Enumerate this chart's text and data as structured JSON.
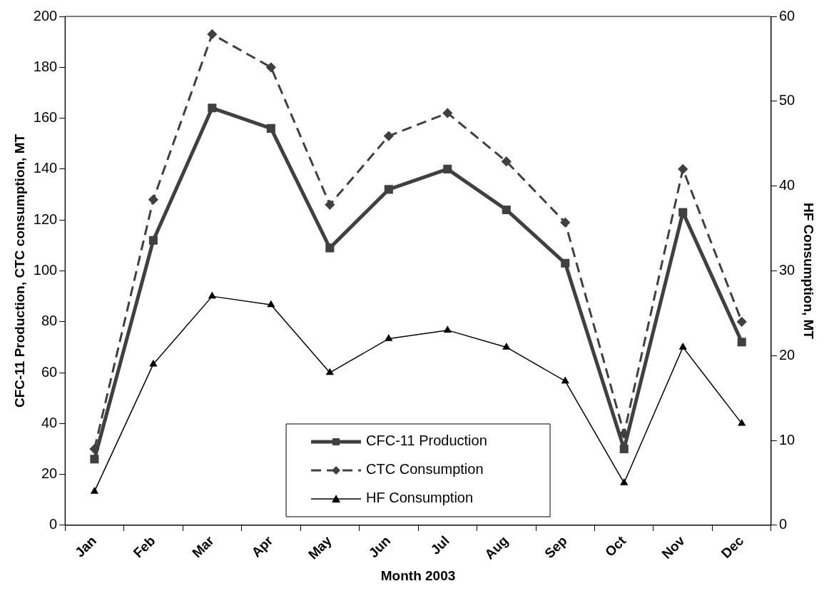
{
  "chart_data": {
    "type": "line",
    "xlabel": "Month 2003",
    "ylabel": "CFC-11 Production, CTC consumption, MT",
    "y2label": "HF Consumption, MT",
    "categories": [
      "Jan",
      "Feb",
      "Mar",
      "Apr",
      "May",
      "Jun",
      "Jul",
      "Aug",
      "Sep",
      "Oct",
      "Nov",
      "Dec"
    ],
    "series": [
      {
        "name": "CFC-11 Production",
        "color": "#404040",
        "marker": "square",
        "line_style": "solid",
        "values": [
          26,
          112,
          164,
          156,
          109,
          132,
          140,
          124,
          103,
          30,
          123,
          72
        ]
      },
      {
        "name": "CTC Consumption",
        "color": "#404040",
        "marker": "diamond",
        "line_style": "dashed",
        "values": [
          30,
          128,
          193,
          180,
          126,
          153,
          162,
          143,
          119,
          36,
          140,
          80
        ]
      },
      {
        "name": "HF Consumption",
        "color": "#000000",
        "marker": "triangle",
        "line_style": "solid",
        "axis": "y2",
        "values": [
          4,
          19,
          27,
          26,
          18,
          22,
          23,
          21,
          17,
          5,
          21,
          12
        ]
      }
    ],
    "ylim": [
      0,
      200
    ],
    "yticks": [
      0,
      20,
      40,
      60,
      80,
      100,
      120,
      140,
      160,
      180,
      200
    ],
    "y2lim": [
      0,
      60
    ],
    "y2ticks": [
      0,
      10,
      20,
      30,
      40,
      50,
      60
    ],
    "grid": false,
    "legend": "bottom"
  }
}
